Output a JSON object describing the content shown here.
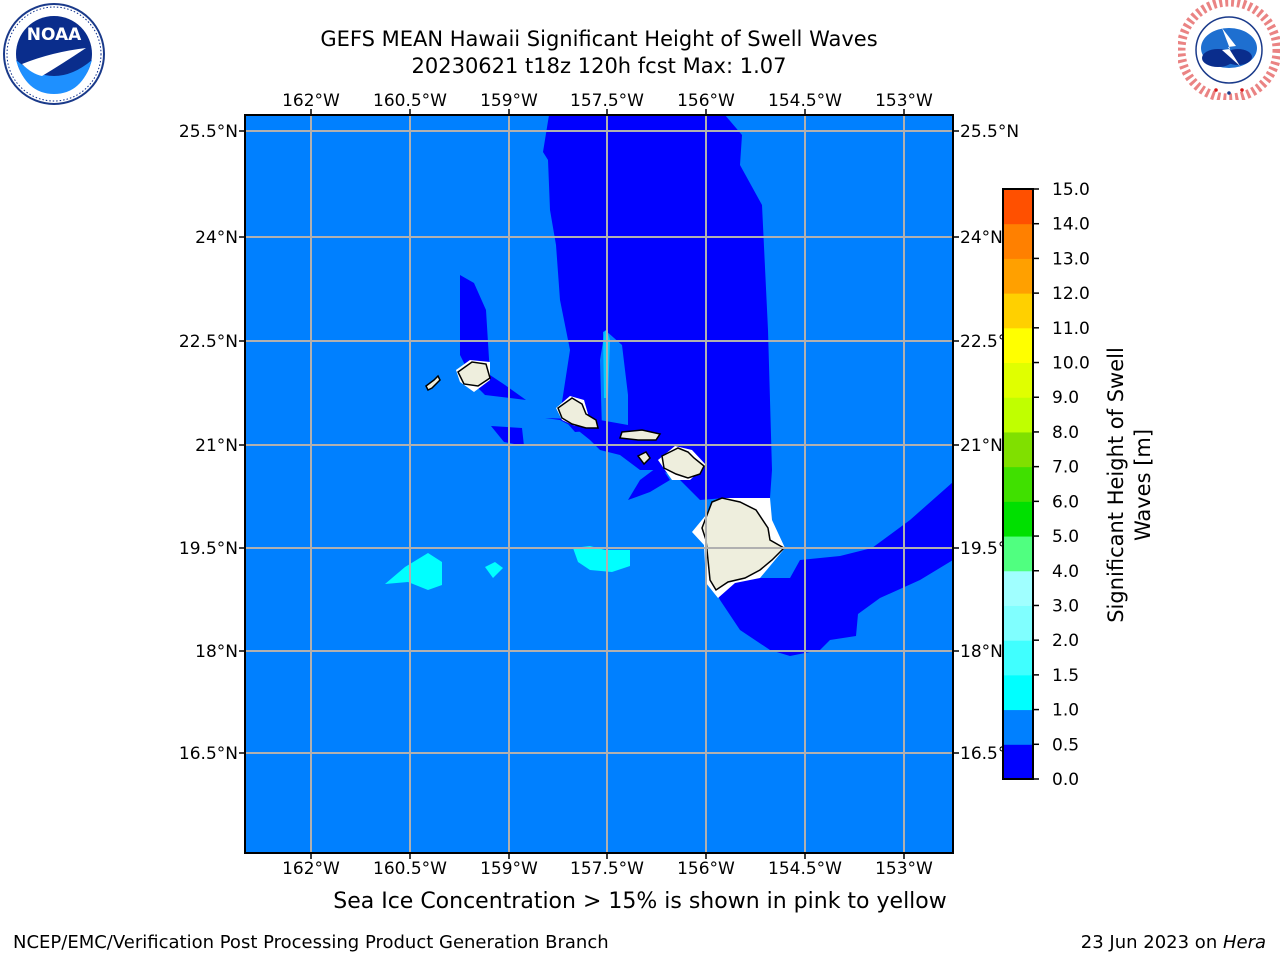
{
  "header": {
    "title_line1": "GEFS MEAN Hawaii Significant Height of Swell Waves",
    "title_line2": "20230621 t18z 120h fcst   Max: 1.07"
  },
  "logos": {
    "left": {
      "icon": "noaa-logo",
      "text": "NOAA",
      "ring_text": "NATIONAL OCEANIC AND ATMOSPHERIC ADMINISTRATION • U.S. DEPARTMENT OF COMMERCE"
    },
    "right": {
      "icon": "nws-logo",
      "ring_text": "NATIONAL WEATHER SERVICE"
    }
  },
  "map": {
    "ocean_color": "#0080ff",
    "deep_swell_color": "#0000ff",
    "high_swell_color": "#00ffff",
    "land_color": "#eeeedd",
    "lon_labels": [
      "162°W",
      "160.5°W",
      "159°W",
      "157.5°W",
      "156°W",
      "154.5°W",
      "153°W"
    ],
    "lat_labels": [
      "25.5°N",
      "24°N",
      "22.5°N",
      "21°N",
      "19.5°N",
      "18°N",
      "16.5°N"
    ]
  },
  "colorbar": {
    "title_line1": "Significant Height of Swell",
    "title_line2": "Waves [m]",
    "ticks": [
      "0.0",
      "0.5",
      "1.0",
      "1.5",
      "2.0",
      "3.0",
      "4.0",
      "5.0",
      "6.0",
      "7.0",
      "8.0",
      "9.0",
      "10.0",
      "11.0",
      "12.0",
      "13.0",
      "14.0",
      "15.0"
    ],
    "colors": [
      "#0000ff",
      "#0080ff",
      "#00ffff",
      "#40ffff",
      "#80ffff",
      "#a0ffff",
      "#50ff80",
      "#00e000",
      "#40e000",
      "#80e000",
      "#c0ff00",
      "#e0ff00",
      "#ffff00",
      "#ffd000",
      "#ffa000",
      "#ff8000",
      "#ff5000",
      "#ff2000",
      "#ff0000"
    ]
  },
  "caption": "Sea Ice Concentration > 15% is shown in pink to yellow",
  "footer": {
    "left": "NCEP/EMC/Verification Post Processing Product Generation Branch",
    "right_prefix": "23 Jun 2023 on ",
    "right_host": "Hera"
  }
}
